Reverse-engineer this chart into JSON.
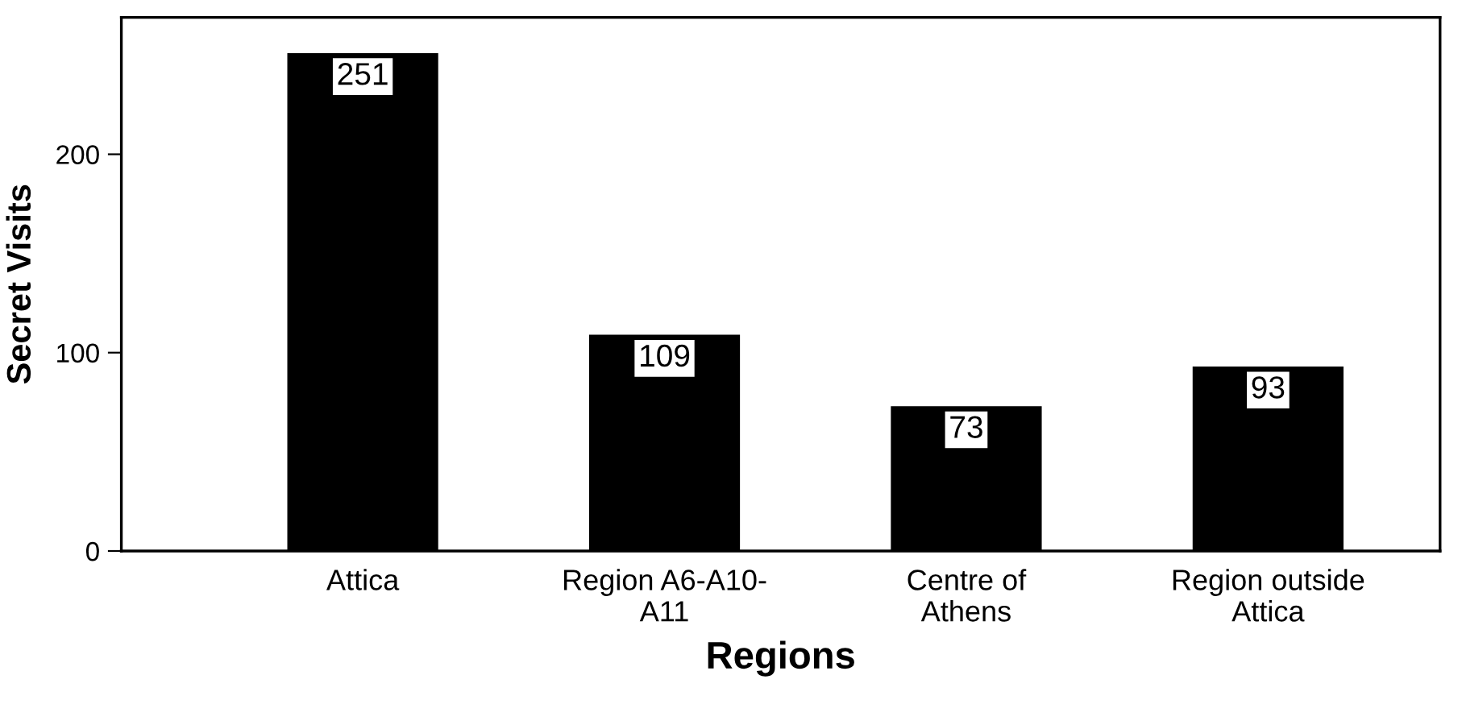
{
  "chart_data": {
    "type": "bar",
    "xlabel": "Regions",
    "ylabel": "Secret Visits",
    "categories": [
      "Attica",
      "Region A6-A10-\nA11",
      "Centre of\nAthens",
      "Region outside\nAttica"
    ],
    "values": [
      251,
      109,
      73,
      93
    ],
    "color": "#000000",
    "ylim": [
      0,
      269
    ],
    "yticks": [
      0,
      100,
      200
    ],
    "grid": false,
    "data_labels": true
  }
}
